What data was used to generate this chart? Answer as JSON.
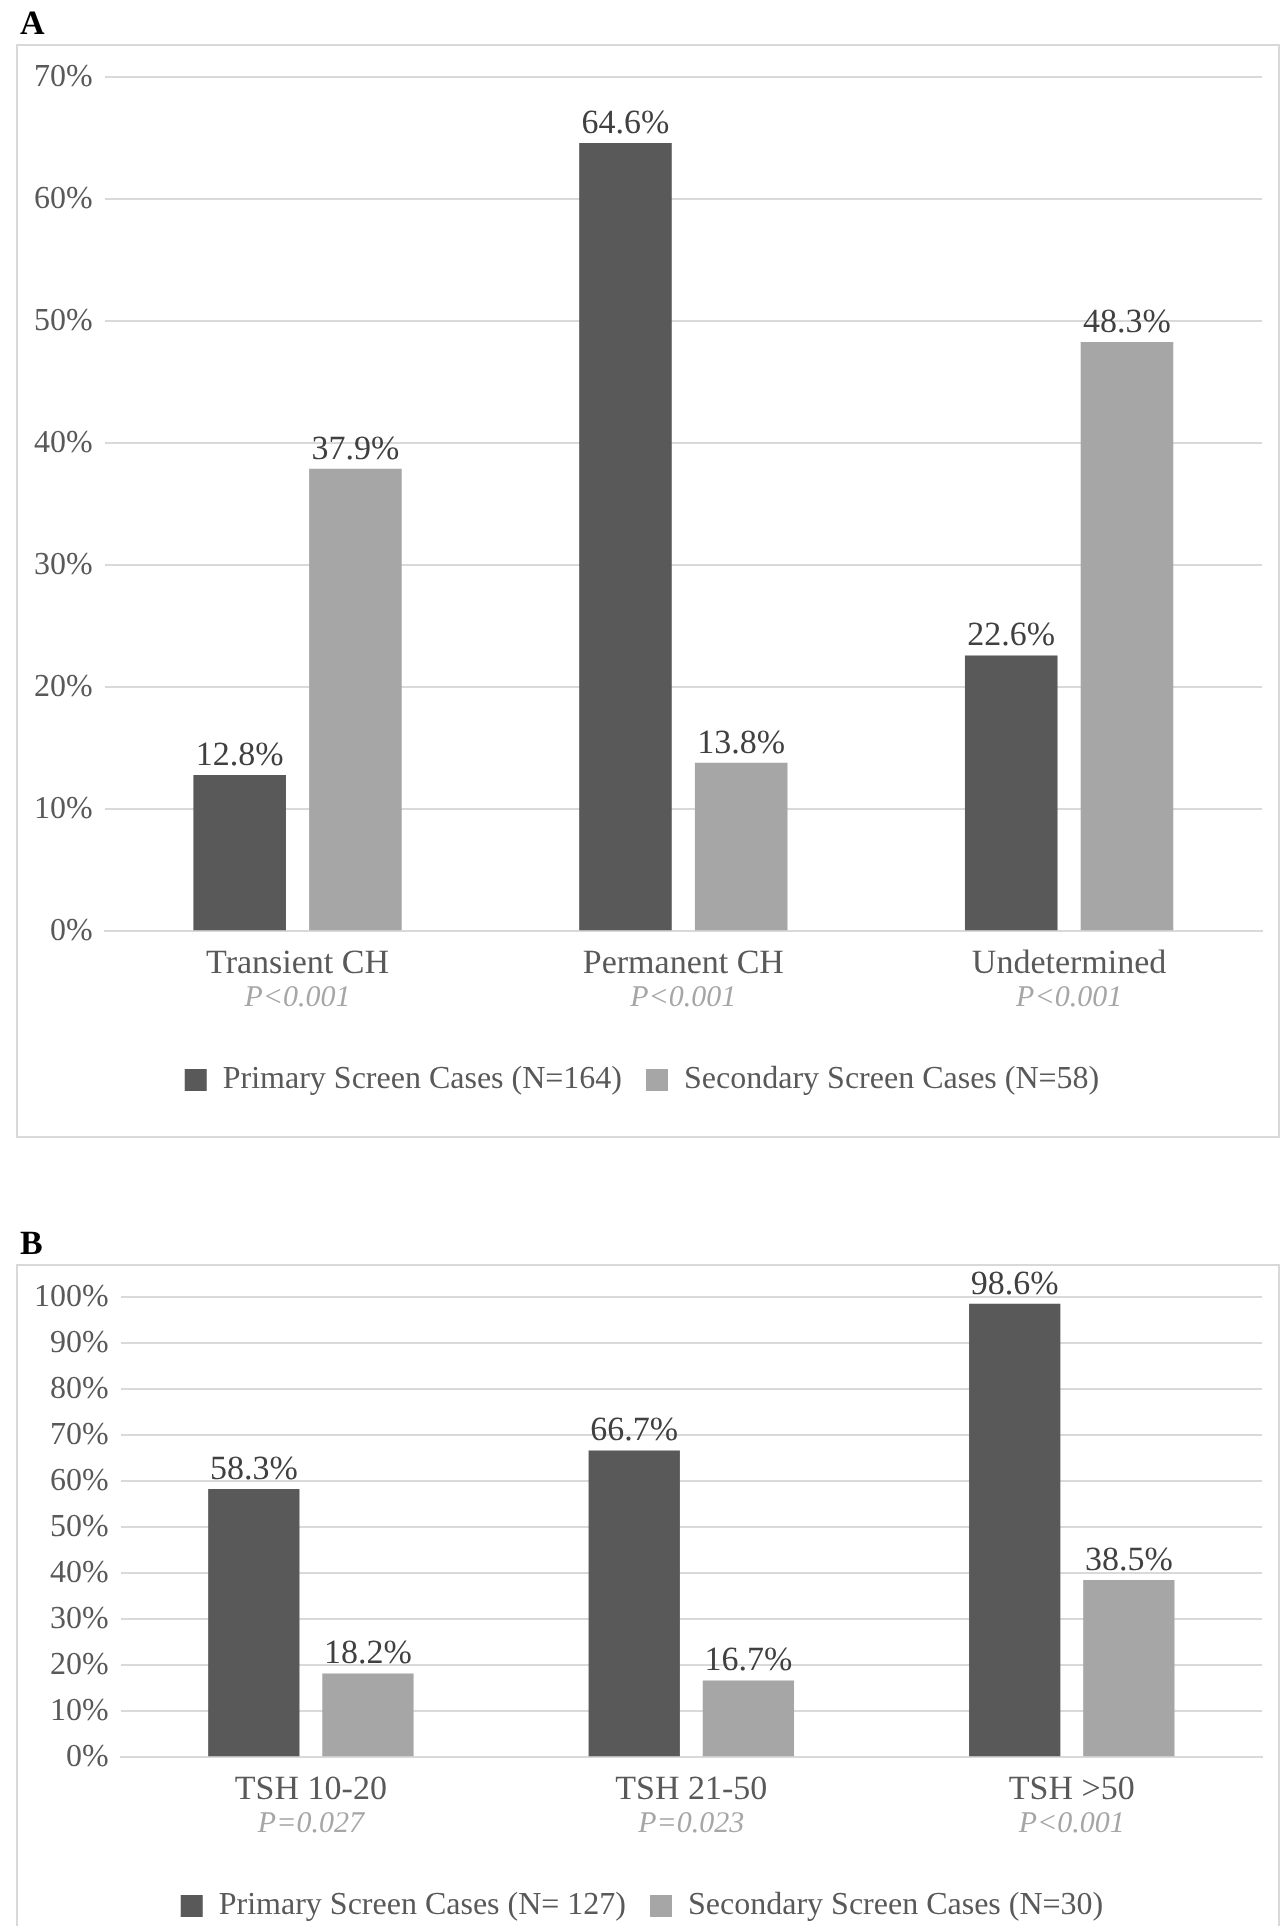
{
  "chart_data": [
    {
      "type": "bar",
      "title": "A",
      "categories": [
        "Transient CH",
        "Permanent CH",
        "Undetermined"
      ],
      "series": [
        {
          "name": "Primary Screen Cases (N=164)",
          "color": "#595959",
          "values": [
            12.8,
            64.6,
            22.6
          ],
          "value_labels": [
            "12.8%",
            "64.6%",
            "22.6%"
          ]
        },
        {
          "name": "Secondary Screen Cases (N=58)",
          "color": "#a6a6a6",
          "values": [
            37.9,
            13.8,
            48.3
          ],
          "value_labels": [
            "37.9%",
            "13.8%",
            "48.3%"
          ]
        }
      ],
      "ylim": [
        0,
        70
      ],
      "yticks": [
        {
          "value": 0,
          "label": "0%"
        },
        {
          "value": 10,
          "label": "10%"
        },
        {
          "value": 20,
          "label": "20%"
        },
        {
          "value": 30,
          "label": "30%"
        },
        {
          "value": 40,
          "label": "40%"
        },
        {
          "value": 50,
          "label": "50%"
        },
        {
          "value": 60,
          "label": "60%"
        },
        {
          "value": 70,
          "label": "70%"
        }
      ],
      "grid": "y",
      "legend": "bottom",
      "annotations": [
        "P<0.001",
        "P<0.001",
        "P<0.001"
      ]
    },
    {
      "type": "bar",
      "title": "B",
      "categories": [
        "TSH 10-20",
        "TSH 21-50",
        "TSH >50"
      ],
      "series": [
        {
          "name": "Primary Screen Cases (N= 127)",
          "color": "#595959",
          "values": [
            58.3,
            66.7,
            98.6
          ],
          "value_labels": [
            "58.3%",
            "66.7%",
            "98.6%"
          ]
        },
        {
          "name": "Secondary Screen Cases (N=30)",
          "color": "#a6a6a6",
          "values": [
            18.2,
            16.7,
            38.5
          ],
          "value_labels": [
            "18.2%",
            "16.7%",
            "38.5%"
          ]
        }
      ],
      "ylim": [
        0,
        100
      ],
      "yticks": [
        {
          "value": 0,
          "label": "0%"
        },
        {
          "value": 10,
          "label": "10%"
        },
        {
          "value": 20,
          "label": "20%"
        },
        {
          "value": 30,
          "label": "30%"
        },
        {
          "value": 40,
          "label": "40%"
        },
        {
          "value": 50,
          "label": "50%"
        },
        {
          "value": 60,
          "label": "60%"
        },
        {
          "value": 70,
          "label": "70%"
        },
        {
          "value": 80,
          "label": "80%"
        },
        {
          "value": 90,
          "label": "90%"
        },
        {
          "value": 100,
          "label": "100%"
        }
      ],
      "grid": "y",
      "legend": "bottom",
      "annotations": [
        "P=0.027",
        "P=0.023",
        "P<0.001"
      ]
    }
  ]
}
